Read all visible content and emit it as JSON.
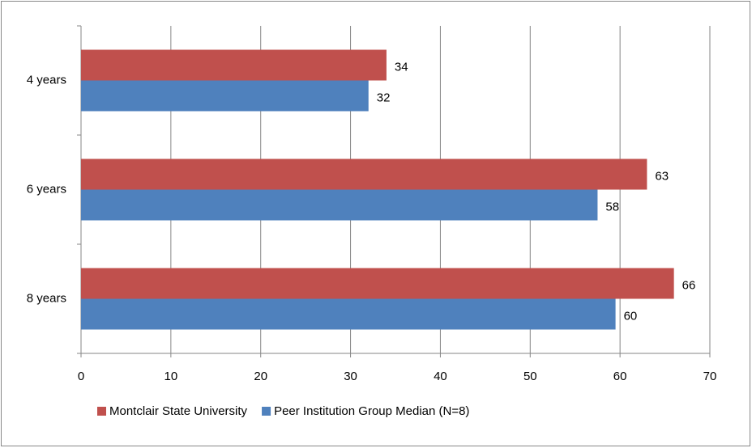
{
  "chart_data": {
    "type": "hbar",
    "categories": [
      "4 years",
      "6 years",
      "8 years"
    ],
    "series": [
      {
        "name": "Montclair State University",
        "color": "#c0504d",
        "values": [
          34,
          63,
          66
        ]
      },
      {
        "name": "Peer Institution Group Median (N=8)",
        "color": "#4f81bd",
        "values": [
          32,
          57.5,
          59.5
        ],
        "value_labels": [
          "32",
          "58",
          "60"
        ]
      }
    ],
    "xlim": [
      0,
      70
    ],
    "xticks": [
      0,
      10,
      20,
      30,
      40,
      50,
      60,
      70
    ],
    "grid": true,
    "legend": "bottom"
  }
}
